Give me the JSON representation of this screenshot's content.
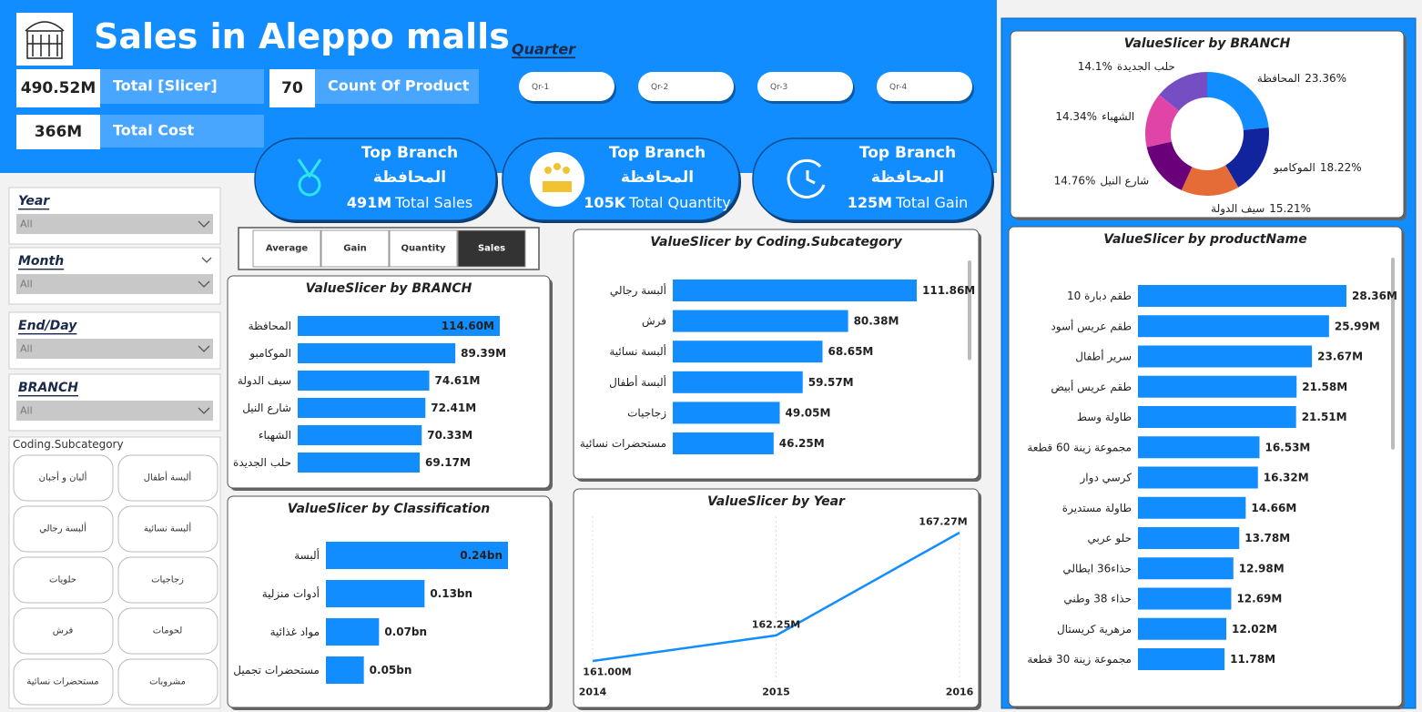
{
  "header": {
    "title": "Sales in Aleppo malls"
  },
  "kpis": [
    {
      "value": "490.52M",
      "label": "Total [Slicer]"
    },
    {
      "value": "70",
      "label": "Count Of Product"
    },
    {
      "value": "366M",
      "label": "Total Cost"
    }
  ],
  "quarter": {
    "label": "Quarter",
    "options": [
      "Qr-1",
      "Qr-2",
      "Qr-3",
      "Qr-4"
    ]
  },
  "top_cards": [
    {
      "title": "Top Branch",
      "branch": "المحافظة",
      "value": "491M",
      "label": "Total Sales"
    },
    {
      "title": "Top Branch",
      "branch": "المحافظة",
      "value": "105K",
      "label": "Total Quantity"
    },
    {
      "title": "Top Branch",
      "branch": "المحافظة",
      "value": "125M",
      "label": "Total Gain"
    }
  ],
  "filters": [
    {
      "label": "Year",
      "value": "All"
    },
    {
      "label": "Month",
      "value": "All"
    },
    {
      "label": "End/Day",
      "value": "All"
    },
    {
      "label": "BRANCH",
      "value": "All"
    }
  ],
  "subcategory_slicer": {
    "label": "Coding.Subcategory",
    "options": [
      "ألبان و أجبان",
      "ألبسة أطفال",
      "ألبسة رجالي",
      "ألبسة نسائية",
      "حلويات",
      "زجاجيات",
      "فرش",
      "لحومات",
      "مستحضرات نسائية",
      "مشروبات"
    ]
  },
  "measures": [
    "Average",
    "Gain",
    "Quantity",
    "Sales"
  ],
  "chart_data": [
    {
      "type": "donut",
      "title": "ValueSlicer by BRANCH",
      "categories": [
        "المحافظة",
        "الموكامبو",
        "سيف الدولة",
        "شارع النيل",
        "الشهباء",
        "حلب الجديدة"
      ],
      "values": [
        23.36,
        18.22,
        15.21,
        14.76,
        14.34,
        14.1
      ],
      "value_labels": [
        "23.36%",
        "18.22%",
        "15.21%",
        "14.76%",
        "14.34%",
        "14.1%"
      ],
      "colors": [
        "#118DFF",
        "#12239E",
        "#E66C37",
        "#6B007B",
        "#E044A7",
        "#744EC2"
      ]
    },
    {
      "type": "bar",
      "orientation": "horizontal",
      "title": "ValueSlicer by BRANCH",
      "color": "#118DFF",
      "categories": [
        "المحافظة",
        "الموكامبو",
        "سيف الدولة",
        "شارع النيل",
        "الشهباء",
        "حلب الجديدة"
      ],
      "values": [
        114.6,
        89.39,
        74.61,
        72.41,
        70.33,
        69.17
      ],
      "value_labels": [
        "114.60M",
        "89.39M",
        "74.61M",
        "72.41M",
        "70.33M",
        "69.17M"
      ]
    },
    {
      "type": "bar",
      "orientation": "horizontal",
      "title": "ValueSlicer by Coding.Subcategory",
      "color": "#118DFF",
      "categories": [
        "ألبسة رجالي",
        "فرش",
        "ألبسة نسائية",
        "ألبسة أطفال",
        "زجاجيات",
        "مستحضرات نسائية"
      ],
      "values": [
        111.86,
        80.38,
        68.65,
        59.57,
        49.05,
        46.25
      ],
      "value_labels": [
        "111.86M",
        "80.38M",
        "68.65M",
        "59.57M",
        "49.05M",
        "46.25M"
      ]
    },
    {
      "type": "bar",
      "orientation": "horizontal",
      "title": "ValueSlicer by Classification",
      "color": "#118DFF",
      "categories": [
        "ألبسة",
        "أدوات منزلية",
        "مواد غذائية",
        "مستحضرات تجميل"
      ],
      "values": [
        0.24,
        0.13,
        0.07,
        0.05
      ],
      "value_labels": [
        "0.24bn",
        "0.13bn",
        "0.07bn",
        "0.05bn"
      ]
    },
    {
      "type": "line",
      "title": "ValueSlicer by Year",
      "color": "#118DFF",
      "x": [
        2014,
        2015,
        2016
      ],
      "xlim": [
        2014,
        2016
      ],
      "xticks": [
        2014,
        2015,
        2016
      ],
      "grid": true,
      "values": [
        161.0,
        162.25,
        167.27
      ],
      "value_labels": [
        "161.00M",
        "162.25M",
        "167.27M"
      ]
    },
    {
      "type": "bar",
      "orientation": "horizontal",
      "title": "ValueSlicer by productName",
      "color": "#118DFF",
      "categories": [
        "طقم دبارة 10",
        "طقم عريس أسود",
        "سرير أطفال",
        "طقم عريس أبيض",
        "طاولة وسط",
        "مجموعة زينة 60 قطعة",
        "كرسي دوار",
        "طاولة مستديرة",
        "حلو عربي",
        "حذاء36 ايطالي",
        "حذاء 38 وطني",
        "مزهرية كريستال",
        "مجموعة زينة 30 قطعة"
      ],
      "values": [
        28.36,
        25.99,
        23.67,
        21.58,
        21.51,
        16.53,
        16.32,
        14.66,
        13.78,
        12.98,
        12.69,
        12.02,
        11.78
      ],
      "value_labels": [
        "28.36M",
        "25.99M",
        "23.67M",
        "21.58M",
        "21.51M",
        "16.53M",
        "16.32M",
        "14.66M",
        "13.78M",
        "12.98M",
        "12.69M",
        "12.02M",
        "11.78M"
      ]
    }
  ]
}
